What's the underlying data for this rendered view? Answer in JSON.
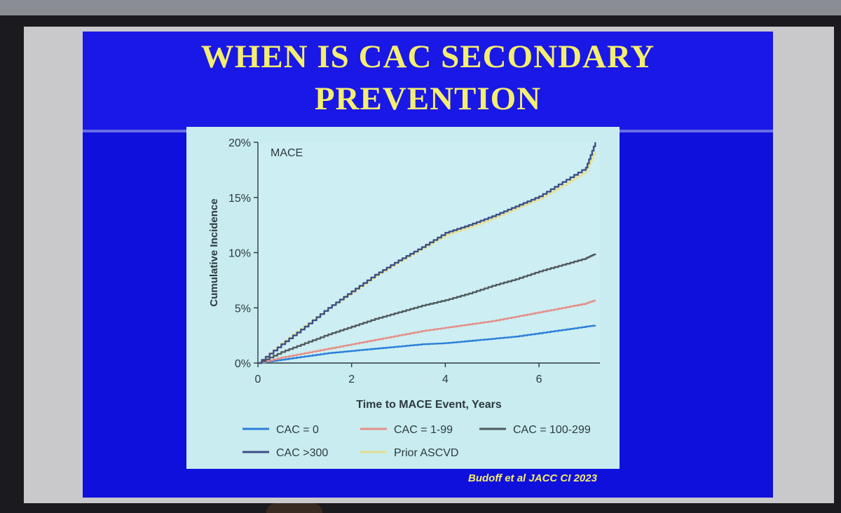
{
  "slide": {
    "title_line1": "WHEN IS CAC SECONDARY",
    "title_line2": "PREVENTION",
    "citation": "Budoff et al JACC CI 2023"
  },
  "colors": {
    "slide_blue": "#1010dd",
    "title_yellow": "#f4ee70",
    "panel_bg": "#c8ecef"
  },
  "chart_data": {
    "type": "line",
    "panel_label": "MACE",
    "xlabel": "Time to MACE Event, Years",
    "ylabel": "Cumulative Incidence",
    "xlim": [
      0,
      7.3
    ],
    "ylim": [
      0,
      20
    ],
    "xticks": [
      0,
      2,
      4,
      6
    ],
    "xtick_labels": [
      "0",
      "2",
      "4",
      "6"
    ],
    "yticks": [
      0,
      5,
      10,
      15,
      20
    ],
    "ytick_labels": [
      "0%",
      "5%",
      "10%",
      "15%",
      "20%"
    ],
    "grid": false,
    "legend_position": "bottom",
    "series": [
      {
        "name": "CAC = 0",
        "color": "#2b7fd9",
        "x": [
          0,
          0.5,
          1,
          1.5,
          2,
          2.5,
          3,
          3.5,
          4,
          4.5,
          5,
          5.5,
          6,
          6.5,
          7,
          7.2
        ],
        "y": [
          0,
          0.3,
          0.6,
          0.9,
          1.1,
          1.3,
          1.5,
          1.7,
          1.8,
          2.0,
          2.2,
          2.4,
          2.7,
          3.0,
          3.3,
          3.4
        ]
      },
      {
        "name": "CAC = 1-99",
        "color": "#e49088",
        "x": [
          0,
          0.5,
          1,
          1.5,
          2,
          2.5,
          3,
          3.5,
          4,
          4.5,
          5,
          5.5,
          6,
          6.5,
          7,
          7.2
        ],
        "y": [
          0,
          0.5,
          0.9,
          1.3,
          1.7,
          2.1,
          2.5,
          2.9,
          3.2,
          3.5,
          3.8,
          4.2,
          4.6,
          5.0,
          5.4,
          5.7
        ]
      },
      {
        "name": "CAC = 100-299",
        "color": "#515a5e",
        "x": [
          0,
          0.5,
          1,
          1.5,
          2,
          2.5,
          3,
          3.5,
          4,
          4.5,
          5,
          5.5,
          6,
          6.5,
          7,
          7.2
        ],
        "y": [
          0,
          1.0,
          1.8,
          2.6,
          3.3,
          4.0,
          4.6,
          5.2,
          5.7,
          6.3,
          7.0,
          7.6,
          8.3,
          8.9,
          9.5,
          9.9
        ]
      },
      {
        "name": "CAC >300",
        "color": "#3c4f86",
        "x": [
          0,
          0.5,
          1,
          1.5,
          2,
          2.5,
          3,
          3.5,
          4,
          4.5,
          5,
          5.5,
          6,
          6.5,
          7,
          7.2
        ],
        "y": [
          0,
          1.7,
          3.3,
          5.0,
          6.5,
          8.0,
          9.3,
          10.5,
          11.8,
          12.5,
          13.3,
          14.2,
          15.1,
          16.4,
          17.7,
          20.0
        ]
      },
      {
        "name": "Prior ASCVD",
        "color": "#e6e090",
        "x": [
          0,
          0.5,
          1,
          1.5,
          2,
          2.5,
          3,
          3.5,
          4,
          4.5,
          5,
          5.5,
          6,
          6.5,
          7,
          7.2
        ],
        "y": [
          0,
          1.8,
          3.4,
          5.0,
          6.4,
          7.9,
          9.2,
          10.4,
          11.6,
          12.3,
          13.1,
          14.0,
          14.9,
          16.1,
          17.4,
          19.2
        ]
      }
    ]
  }
}
